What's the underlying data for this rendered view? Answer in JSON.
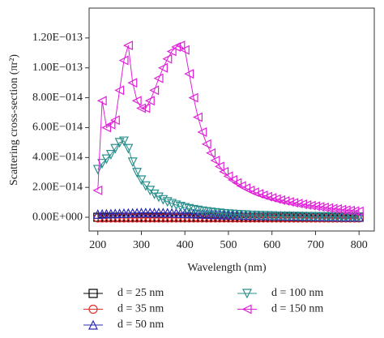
{
  "chart_data": {
    "type": "line",
    "xlabel": "Wavelength (nm)",
    "ylabel": "Scattering cross-section (πr²)",
    "x": [
      200,
      210,
      220,
      230,
      240,
      250,
      260,
      270,
      280,
      290,
      300,
      310,
      320,
      330,
      340,
      350,
      360,
      370,
      380,
      390,
      400,
      410,
      420,
      430,
      440,
      450,
      460,
      470,
      480,
      490,
      500,
      510,
      520,
      530,
      540,
      550,
      560,
      570,
      580,
      590,
      600,
      610,
      620,
      630,
      640,
      650,
      660,
      670,
      680,
      690,
      700,
      710,
      720,
      730,
      740,
      750,
      760,
      770,
      780,
      790,
      800
    ],
    "xlim": [
      180,
      835
    ],
    "xticks": [
      200,
      300,
      400,
      500,
      600,
      700,
      800
    ],
    "ylim": [
      -9.2e-15,
      1.4e-13
    ],
    "yticks": [
      {
        "value": 0,
        "label": "0.00E+000"
      },
      {
        "value": 2e-14,
        "label": "2.00E−014"
      },
      {
        "value": 4e-14,
        "label": "4.00E−014"
      },
      {
        "value": 6e-14,
        "label": "6.00E−014"
      },
      {
        "value": 8e-14,
        "label": "8.00E−014"
      },
      {
        "value": 1e-13,
        "label": "1.00E−013"
      },
      {
        "value": 1.2e-13,
        "label": "1.20E−013"
      }
    ],
    "series": [
      {
        "name": "d = 25 nm",
        "color": "#000000",
        "marker": "square",
        "values": [
          0,
          0,
          0,
          0,
          0,
          0,
          0,
          0,
          0,
          0,
          0,
          0,
          0,
          0,
          0,
          0,
          0,
          0,
          0,
          0,
          0,
          0,
          0,
          0,
          0,
          0,
          0,
          0,
          0,
          0,
          0,
          0,
          0,
          0,
          0,
          0,
          0,
          0,
          0,
          0,
          0,
          0,
          0,
          0,
          0,
          0,
          0,
          0,
          0,
          0,
          0,
          0,
          0,
          0,
          0,
          0,
          0,
          0,
          0,
          0,
          0
        ]
      },
      {
        "name": "d = 35 nm",
        "color": "#e0302a",
        "marker": "circle",
        "values": [
          -5e-16,
          -5e-16,
          -5e-16,
          -5e-16,
          -5e-16,
          -5e-16,
          -5e-16,
          -5e-16,
          -5e-16,
          -5e-16,
          -5e-16,
          -5e-16,
          -5e-16,
          -5e-16,
          -5e-16,
          -5e-16,
          -5e-16,
          -5e-16,
          -5e-16,
          -5e-16,
          -5e-16,
          -5e-16,
          -5e-16,
          -5e-16,
          -5e-16,
          -5e-16,
          -5e-16,
          -5e-16,
          -5e-16,
          -5e-16,
          -5e-16,
          -5e-16,
          -5e-16,
          -5e-16,
          -5e-16,
          -5e-16,
          -5e-16,
          -5e-16,
          -5e-16,
          -5e-16,
          -5e-16,
          -5e-16,
          -5e-16,
          -5e-16,
          -5e-16,
          -5e-16,
          -5e-16,
          -5e-16,
          -5e-16,
          -5e-16,
          -5e-16,
          -5e-16,
          -5e-16,
          -5e-16,
          -5e-16,
          -5e-16,
          -5e-16,
          -5e-16,
          -5e-16,
          -5e-16,
          -5e-16
        ]
      },
      {
        "name": "d = 50 nm",
        "color": "#2a2ab0",
        "marker": "triangle-up",
        "values": [
          2e-15,
          2.1e-15,
          2.2e-15,
          2.3e-15,
          2.4e-15,
          2.5e-15,
          2.6e-15,
          2.7e-15,
          2.8e-15,
          2.9e-15,
          3e-15,
          3e-15,
          3e-15,
          3e-15,
          3e-15,
          3e-15,
          2.9e-15,
          2.8e-15,
          2.7e-15,
          2.6e-15,
          2.5e-15,
          2.4e-15,
          2.3e-15,
          2.2e-15,
          2.1e-15,
          2e-15,
          1.9e-15,
          1.8e-15,
          1.7e-15,
          1.6e-15,
          1.5e-15,
          1.45e-15,
          1.4e-15,
          1.35e-15,
          1.3e-15,
          1.25e-15,
          1.2e-15,
          1.15e-15,
          1.1e-15,
          1.05e-15,
          1e-15,
          9.5e-16,
          9e-16,
          8.5e-16,
          8e-16,
          7.5e-16,
          7e-16,
          6.5e-16,
          6e-16,
          5.5e-16,
          5e-16,
          4.5e-16,
          4e-16,
          3.5e-16,
          3e-16,
          2.5e-16,
          2e-16,
          1.5e-16,
          1e-16,
          1e-16,
          1e-16
        ]
      },
      {
        "name": "d = 100 nm",
        "color": "#2a8f8c",
        "marker": "triangle-down",
        "values": [
          3.2e-14,
          3.6e-14,
          3.9e-14,
          4.2e-14,
          4.6e-14,
          5e-14,
          5.1e-14,
          4.6e-14,
          3.7e-14,
          3e-14,
          2.5e-14,
          2.1e-14,
          1.8e-14,
          1.55e-14,
          1.35e-14,
          1.18e-14,
          1.04e-14,
          9.2e-15,
          8.2e-15,
          7.3e-15,
          6.5e-15,
          5.8e-15,
          5.2e-15,
          4.7e-15,
          4.2e-15,
          3.8e-15,
          3.4e-15,
          3.1e-15,
          2.8e-15,
          2.5e-15,
          2.3e-15,
          2.1e-15,
          1.9e-15,
          1.7e-15,
          1.6e-15,
          1.4e-15,
          1.3e-15,
          1.2e-15,
          1.1e-15,
          1e-15,
          9e-16,
          8.5e-16,
          8e-16,
          7.5e-16,
          7e-16,
          6.5e-16,
          6e-16,
          5.6e-16,
          5.2e-16,
          4.8e-16,
          4.5e-16,
          4.2e-16,
          4e-16,
          3.8e-16,
          3.6e-16,
          3.4e-16,
          3.2e-16,
          3e-16,
          2.9e-16,
          2.8e-16,
          2.7e-16
        ]
      },
      {
        "name": "d = 150 nm",
        "color": "#e020d8",
        "marker": "triangle-left",
        "values": [
          1.8e-14,
          7.8e-14,
          6e-14,
          6.2e-14,
          6.5e-14,
          8.5e-14,
          1.05e-13,
          1.15e-13,
          9e-14,
          7.8e-14,
          7.3e-14,
          7.3e-14,
          7.8e-14,
          8.5e-14,
          9.3e-14,
          1e-13,
          1.06e-13,
          1.11e-13,
          1.14e-13,
          1.15e-13,
          1.12e-13,
          9.6e-14,
          8e-14,
          6.7e-14,
          5.7e-14,
          4.9e-14,
          4.3e-14,
          3.8e-14,
          3.4e-14,
          3.05e-14,
          2.75e-14,
          2.5e-14,
          2.3e-14,
          2.1e-14,
          1.95e-14,
          1.8e-14,
          1.68e-14,
          1.57e-14,
          1.47e-14,
          1.38e-14,
          1.3e-14,
          1.22e-14,
          1.15e-14,
          1.09e-14,
          1.03e-14,
          9.7e-15,
          9.2e-15,
          8.7e-15,
          8.2e-15,
          7.8e-15,
          7.4e-15,
          7e-15,
          6.6e-15,
          6.2e-15,
          5.8e-15,
          5.5e-15,
          5.1e-15,
          4.8e-15,
          4.5e-15,
          4.2e-15,
          4e-15
        ]
      }
    ]
  }
}
